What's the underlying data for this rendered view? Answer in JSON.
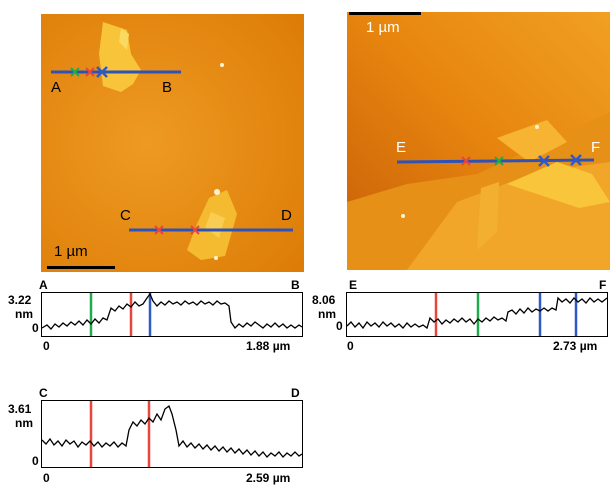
{
  "afm_left": {
    "scale_label": "1 µm",
    "line_ab": {
      "start": "A",
      "end": "B"
    },
    "line_cd": {
      "start": "C",
      "end": "D"
    }
  },
  "afm_right": {
    "scale_label": "1 µm",
    "line_ef": {
      "start": "E",
      "end": "F"
    }
  },
  "profiles": {
    "ab": {
      "start": "A",
      "end": "B",
      "y_max": "3.22",
      "unit": "nm",
      "y_zero": "0",
      "x_zero": "0",
      "x_max": "1.88 µm"
    },
    "cd": {
      "start": "C",
      "end": "D",
      "y_max": "3.61",
      "unit": "nm",
      "y_zero": "0",
      "x_zero": "0",
      "x_max": "2.59 µm"
    },
    "ef": {
      "start": "E",
      "end": "F",
      "y_max": "8.06",
      "unit": "nm",
      "y_zero": "0",
      "x_zero": "0",
      "x_max": "2.73 µm"
    }
  },
  "colors": {
    "line": "#2f52b8",
    "red": "#e8463c",
    "green": "#1faa4c",
    "blue": "#2e59c9",
    "afm_base": "#e8860e",
    "afm_flake": "#f7c43a"
  }
}
